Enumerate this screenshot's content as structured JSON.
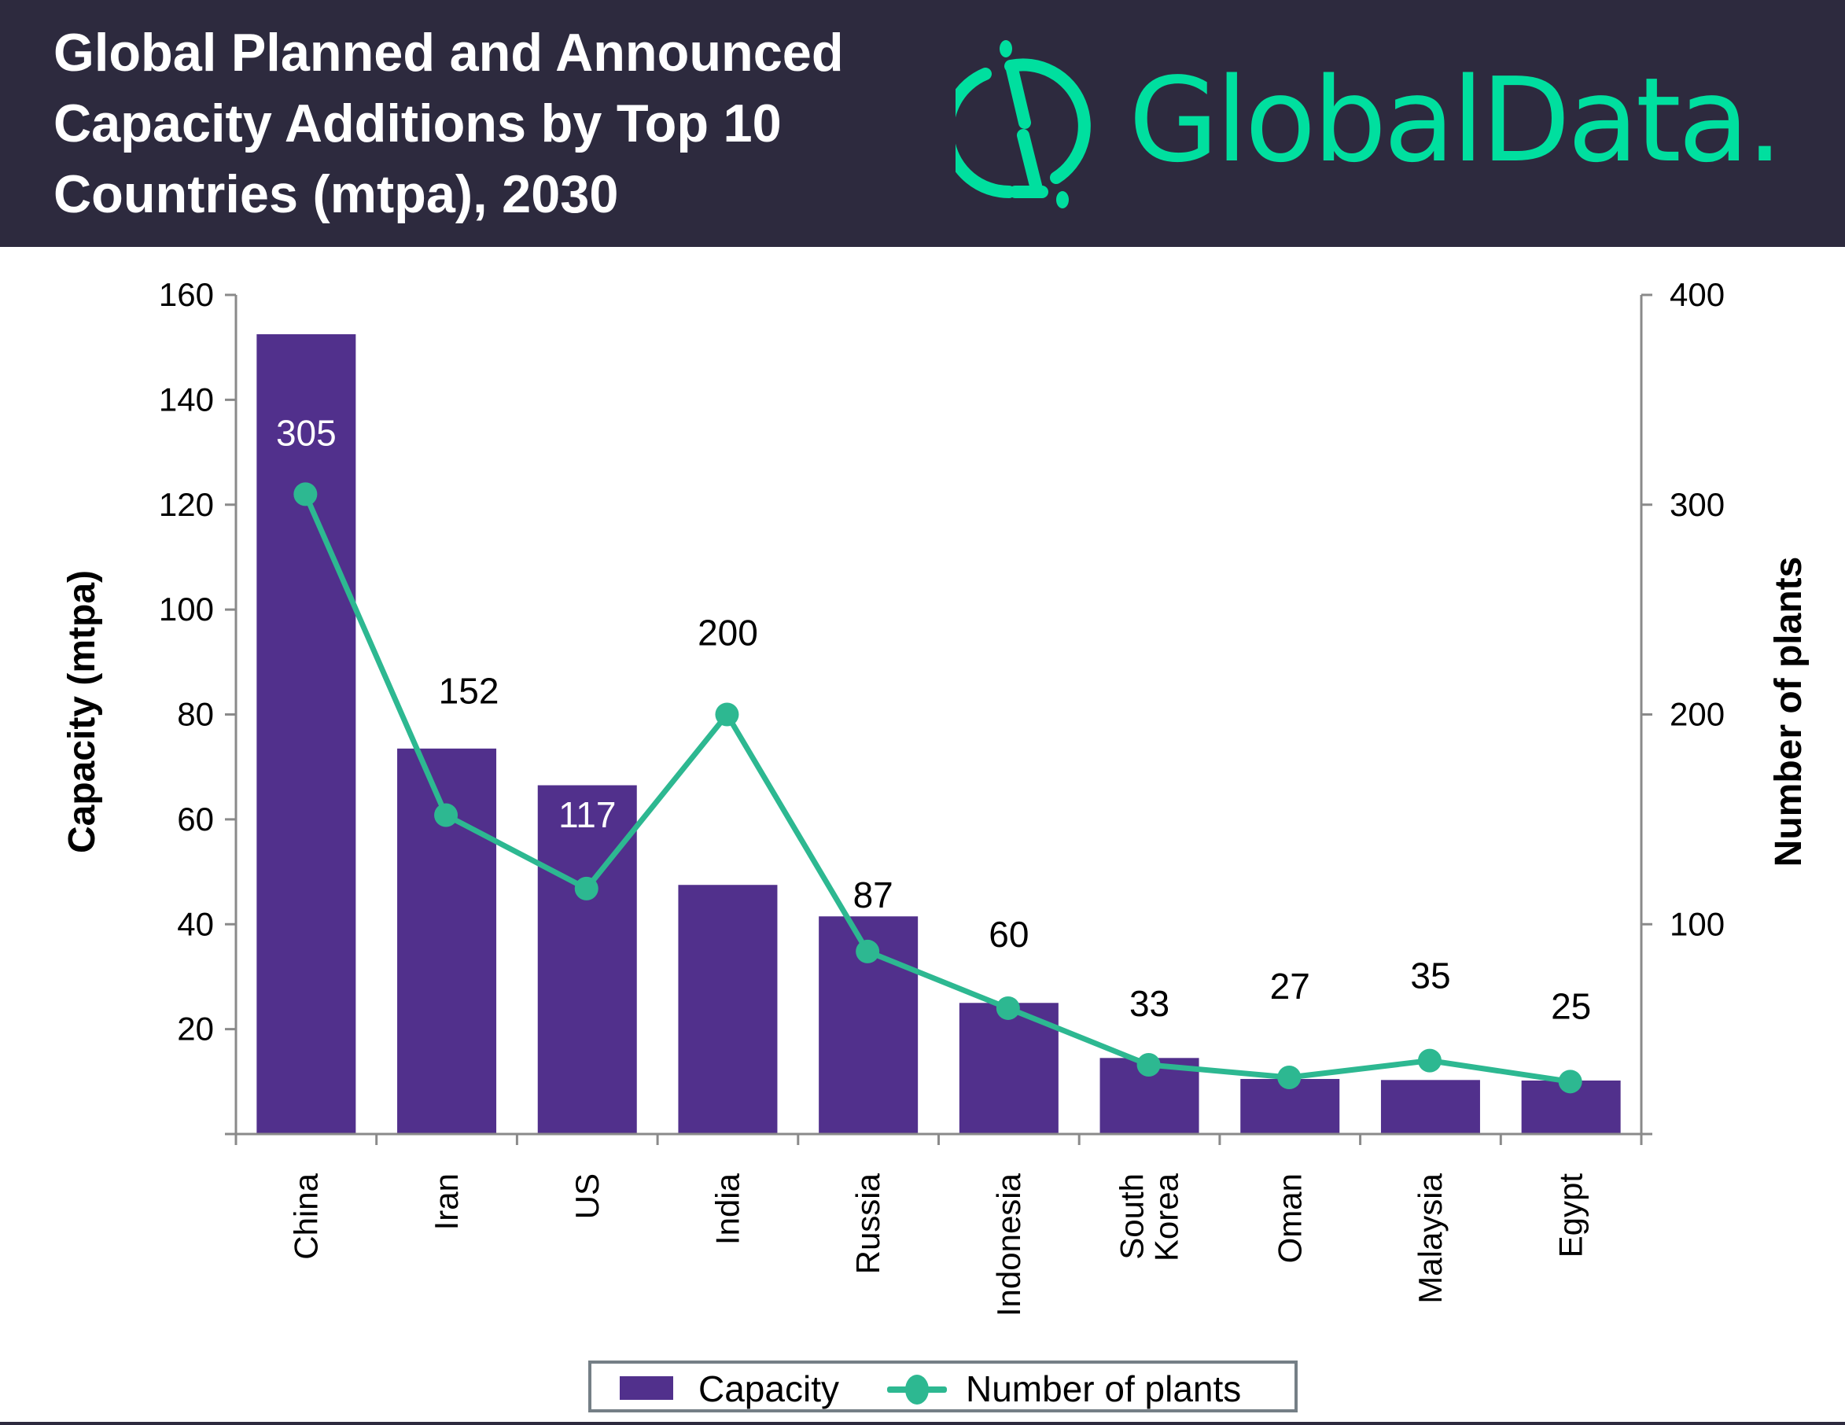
{
  "header": {
    "title_lines": [
      "Global Planned and Announced",
      "Capacity Additions by Top 10",
      "Countries (mtpa), 2030"
    ],
    "brand": "GlobalData."
  },
  "colors": {
    "header_bg": "#2d2a3e",
    "brand": "#00df9f",
    "bar": "#51308c",
    "line": "#2db891",
    "axis": "#8a8a8a"
  },
  "chart_data": {
    "type": "bar",
    "title": "Global Planned and Announced Capacity Additions by Top 10 Countries (mtpa), 2030",
    "categories": [
      "China",
      "Iran",
      "US",
      "India",
      "Russia",
      "Indonesia",
      "South Korea",
      "Oman",
      "Malaysia",
      "Egypt"
    ],
    "category_label_lines": [
      [
        "China"
      ],
      [
        "Iran"
      ],
      [
        "US"
      ],
      [
        "India"
      ],
      [
        "Russia"
      ],
      [
        "Indonesia"
      ],
      [
        "South",
        "Korea"
      ],
      [
        "Oman"
      ],
      [
        "Malaysia"
      ],
      [
        "Egypt"
      ]
    ],
    "series": [
      {
        "name": "Capacity",
        "type": "bar",
        "axis": "left",
        "values": [
          152.5,
          73.5,
          66.5,
          47.5,
          41.5,
          25,
          14.5,
          10.5,
          10.3,
          10.2
        ]
      },
      {
        "name": "Number of plants",
        "type": "line",
        "axis": "right",
        "values": [
          305,
          152,
          117,
          200,
          87,
          60,
          33,
          27,
          35,
          25
        ],
        "data_labels": [
          "305",
          "152",
          "117",
          "200",
          "87",
          "60",
          "33",
          "27",
          "35",
          "25"
        ]
      }
    ],
    "ylabel": "Capacity (mtpa)",
    "y2label": "Number of plants",
    "xlabel": "",
    "ylim": [
      0,
      160
    ],
    "y2lim": [
      0,
      400
    ],
    "yticks": [
      20,
      40,
      60,
      80,
      100,
      120,
      140,
      160
    ],
    "ytick_labels": [
      "20",
      "40",
      "60",
      "80",
      "100",
      "120",
      "140",
      "160"
    ],
    "y2ticks": [
      100,
      200,
      300,
      400
    ],
    "y2tick_labels": [
      "100",
      "200",
      "300",
      "400"
    ],
    "grid": false,
    "legend": {
      "placement": "bottom-center",
      "entries": [
        "Capacity",
        "Number of plants"
      ]
    }
  }
}
